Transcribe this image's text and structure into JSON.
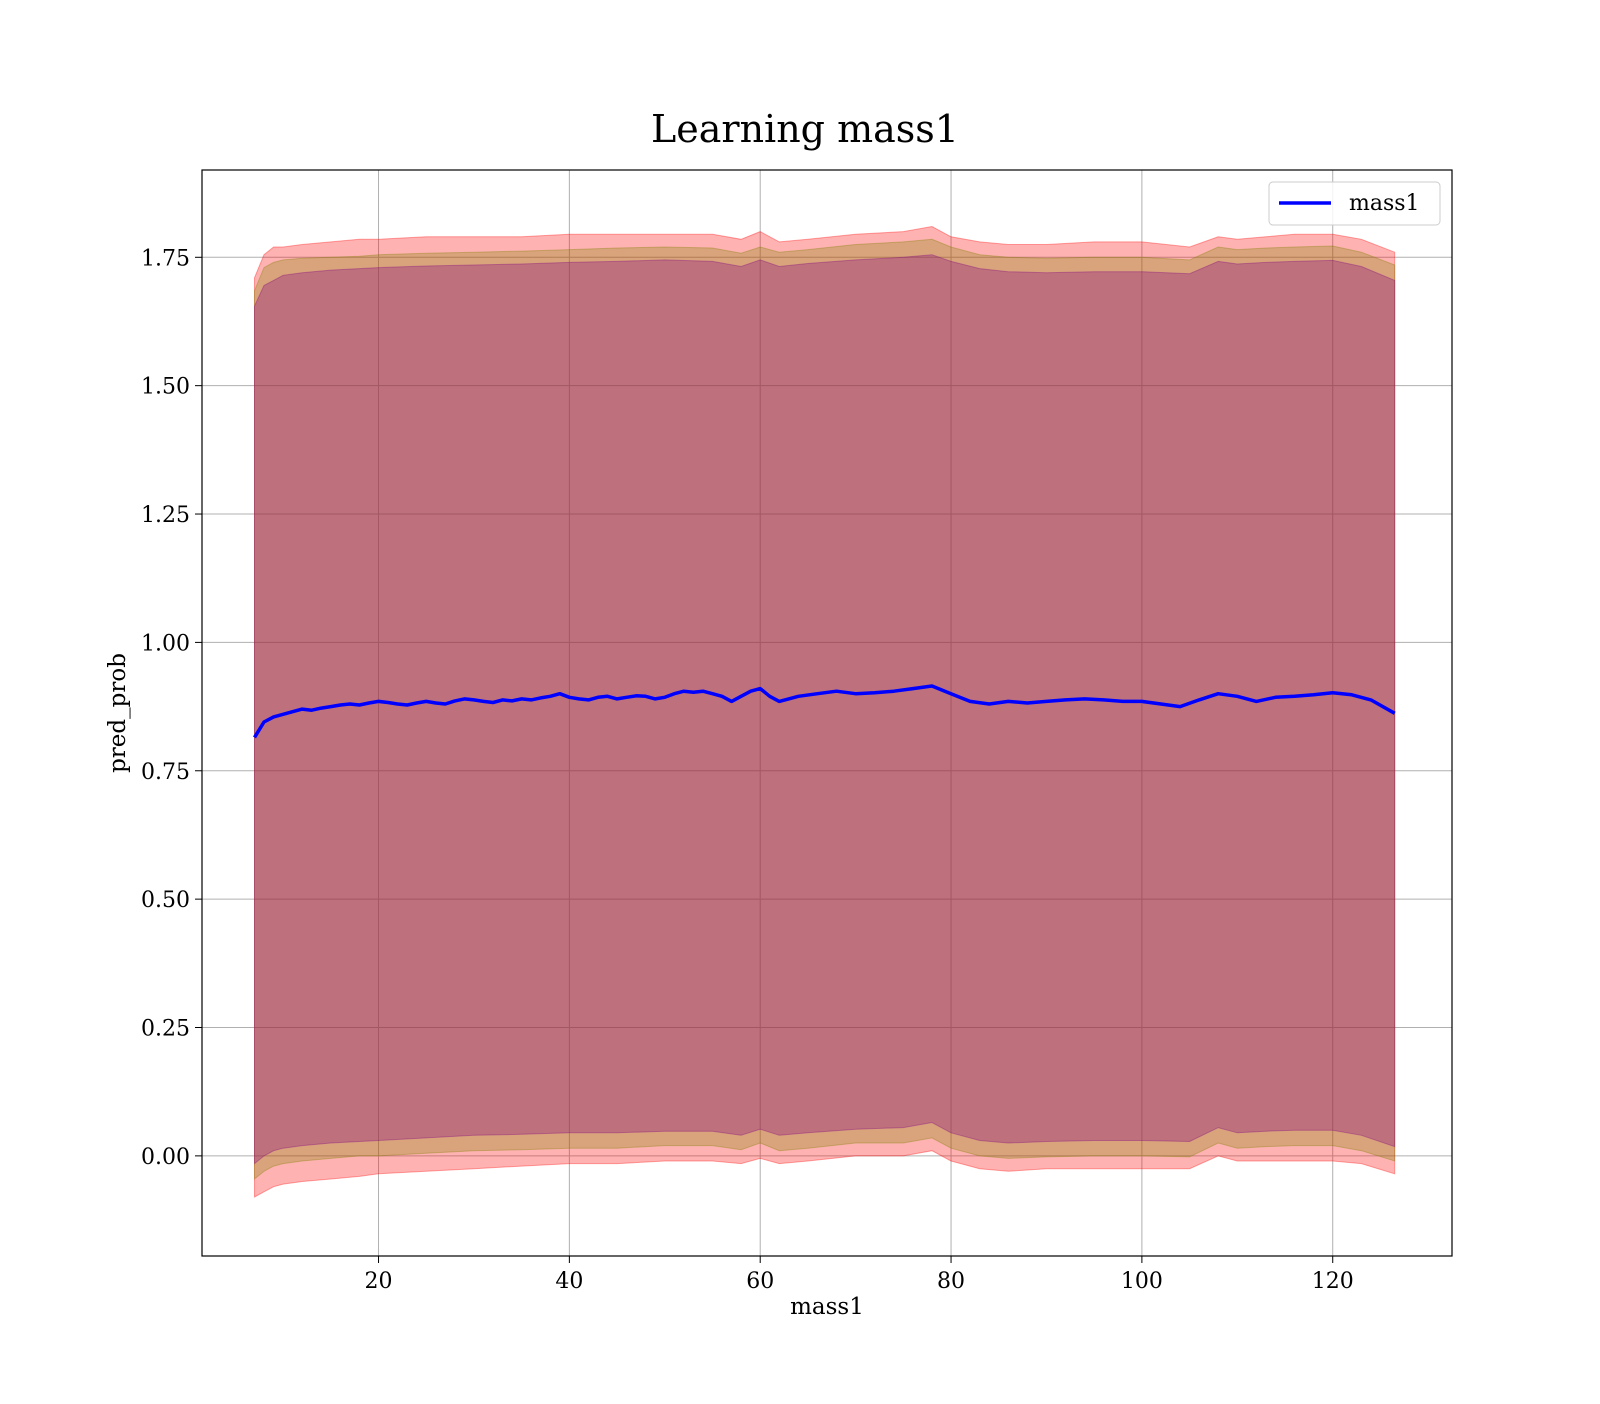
{
  "chart_data": {
    "type": "line",
    "title": "Learning mass1",
    "xlabel": "mass1",
    "ylabel": "pred_prob",
    "xlim": [
      1.5,
      132.5
    ],
    "ylim": [
      -0.195,
      1.92
    ],
    "xticks": [
      20,
      40,
      60,
      80,
      100,
      120
    ],
    "yticks": [
      0.0,
      0.25,
      0.5,
      0.75,
      1.0,
      1.25,
      1.5,
      1.75
    ],
    "xtick_labels": [
      "20",
      "40",
      "60",
      "80",
      "100",
      "120"
    ],
    "ytick_labels": [
      "0.00",
      "0.25",
      "0.50",
      "0.75",
      "1.00",
      "1.25",
      "1.50",
      "1.75"
    ],
    "grid": true,
    "legend": {
      "position": "top-right",
      "entries": [
        "mass1"
      ]
    },
    "series": [
      {
        "name": "mass1",
        "color": "#0000ff",
        "x": [
          7,
          8,
          9,
          10,
          11,
          12,
          13,
          14,
          15,
          16,
          17,
          18,
          19,
          20,
          21,
          22,
          23,
          24,
          25,
          26,
          27,
          28,
          29,
          30,
          31,
          32,
          33,
          34,
          35,
          36,
          37,
          38,
          39,
          40,
          41,
          42,
          43,
          44,
          45,
          46,
          47,
          48,
          49,
          50,
          51,
          52,
          53,
          54,
          55,
          56,
          57,
          58,
          59,
          60,
          61,
          62,
          64,
          66,
          68,
          70,
          72,
          74,
          76,
          78,
          80,
          82,
          84,
          86,
          88,
          90,
          92,
          94,
          96,
          98,
          100,
          102,
          104,
          106,
          108,
          110,
          112,
          114,
          116,
          118,
          120,
          122,
          124,
          126.5
        ],
        "y": [
          0.815,
          0.845,
          0.855,
          0.86,
          0.865,
          0.87,
          0.868,
          0.872,
          0.875,
          0.878,
          0.88,
          0.878,
          0.882,
          0.885,
          0.883,
          0.88,
          0.878,
          0.882,
          0.885,
          0.882,
          0.88,
          0.886,
          0.89,
          0.888,
          0.885,
          0.883,
          0.888,
          0.886,
          0.89,
          0.888,
          0.892,
          0.895,
          0.9,
          0.893,
          0.89,
          0.888,
          0.893,
          0.895,
          0.89,
          0.893,
          0.896,
          0.895,
          0.89,
          0.893,
          0.9,
          0.905,
          0.903,
          0.905,
          0.9,
          0.895,
          0.885,
          0.895,
          0.905,
          0.91,
          0.895,
          0.885,
          0.895,
          0.9,
          0.905,
          0.9,
          0.902,
          0.905,
          0.91,
          0.915,
          0.9,
          0.885,
          0.88,
          0.885,
          0.882,
          0.885,
          0.888,
          0.89,
          0.888,
          0.885,
          0.885,
          0.88,
          0.875,
          0.888,
          0.9,
          0.895,
          0.885,
          0.893,
          0.895,
          0.898,
          0.902,
          0.898,
          0.888,
          0.862
        ]
      }
    ],
    "bands": [
      {
        "color": "#ff0000",
        "x": [
          7,
          8,
          9,
          10,
          12,
          15,
          18,
          20,
          25,
          30,
          35,
          40,
          45,
          50,
          55,
          58,
          60,
          62,
          65,
          70,
          75,
          78,
          80,
          83,
          86,
          90,
          95,
          100,
          105,
          108,
          110,
          113,
          116,
          120,
          123,
          126.5
        ],
        "upper": [
          1.71,
          1.755,
          1.77,
          1.77,
          1.775,
          1.78,
          1.785,
          1.785,
          1.79,
          1.79,
          1.79,
          1.795,
          1.795,
          1.795,
          1.795,
          1.785,
          1.8,
          1.78,
          1.785,
          1.795,
          1.8,
          1.81,
          1.79,
          1.78,
          1.775,
          1.775,
          1.78,
          1.78,
          1.77,
          1.79,
          1.785,
          1.79,
          1.795,
          1.795,
          1.785,
          1.76
        ],
        "lower": [
          -0.08,
          -0.07,
          -0.06,
          -0.055,
          -0.05,
          -0.045,
          -0.04,
          -0.035,
          -0.03,
          -0.025,
          -0.02,
          -0.015,
          -0.015,
          -0.01,
          -0.01,
          -0.015,
          -0.005,
          -0.015,
          -0.01,
          0.0,
          0.0,
          0.01,
          -0.01,
          -0.025,
          -0.03,
          -0.025,
          -0.025,
          -0.025,
          -0.025,
          0.0,
          -0.01,
          -0.01,
          -0.01,
          -0.01,
          -0.015,
          -0.035
        ]
      },
      {
        "color": "#808000",
        "x": [
          7,
          8,
          9,
          10,
          12,
          15,
          18,
          20,
          25,
          30,
          35,
          40,
          45,
          50,
          55,
          58,
          60,
          62,
          65,
          70,
          75,
          78,
          80,
          83,
          86,
          90,
          95,
          100,
          105,
          108,
          110,
          113,
          116,
          120,
          123,
          126.5
        ],
        "upper": [
          1.685,
          1.73,
          1.74,
          1.745,
          1.748,
          1.75,
          1.752,
          1.755,
          1.758,
          1.76,
          1.762,
          1.765,
          1.768,
          1.77,
          1.768,
          1.758,
          1.77,
          1.76,
          1.765,
          1.775,
          1.78,
          1.785,
          1.77,
          1.755,
          1.75,
          1.748,
          1.75,
          1.75,
          1.745,
          1.77,
          1.765,
          1.768,
          1.77,
          1.772,
          1.76,
          1.735
        ],
        "lower": [
          -0.045,
          -0.03,
          -0.02,
          -0.015,
          -0.01,
          -0.005,
          0.0,
          0.0,
          0.005,
          0.01,
          0.012,
          0.015,
          0.015,
          0.02,
          0.02,
          0.012,
          0.025,
          0.01,
          0.015,
          0.025,
          0.025,
          0.035,
          0.015,
          0.0,
          -0.005,
          -0.002,
          0.0,
          0.0,
          -0.002,
          0.025,
          0.015,
          0.018,
          0.02,
          0.02,
          0.01,
          -0.01
        ]
      },
      {
        "color": "#800080",
        "x": [
          7,
          8,
          9,
          10,
          12,
          15,
          18,
          20,
          25,
          30,
          35,
          40,
          45,
          50,
          55,
          58,
          60,
          62,
          65,
          70,
          75,
          78,
          80,
          83,
          86,
          90,
          95,
          100,
          105,
          108,
          110,
          113,
          116,
          120,
          123,
          126.5
        ],
        "upper": [
          1.655,
          1.695,
          1.705,
          1.715,
          1.72,
          1.725,
          1.728,
          1.73,
          1.733,
          1.735,
          1.737,
          1.74,
          1.742,
          1.745,
          1.742,
          1.732,
          1.745,
          1.732,
          1.738,
          1.745,
          1.75,
          1.755,
          1.742,
          1.728,
          1.722,
          1.72,
          1.722,
          1.722,
          1.718,
          1.742,
          1.737,
          1.74,
          1.742,
          1.744,
          1.732,
          1.705
        ],
        "lower": [
          -0.015,
          0.0,
          0.01,
          0.015,
          0.02,
          0.025,
          0.028,
          0.03,
          0.035,
          0.04,
          0.042,
          0.045,
          0.045,
          0.048,
          0.048,
          0.04,
          0.052,
          0.04,
          0.045,
          0.052,
          0.055,
          0.065,
          0.045,
          0.03,
          0.025,
          0.028,
          0.03,
          0.03,
          0.028,
          0.055,
          0.045,
          0.048,
          0.05,
          0.05,
          0.04,
          0.018
        ]
      }
    ]
  }
}
